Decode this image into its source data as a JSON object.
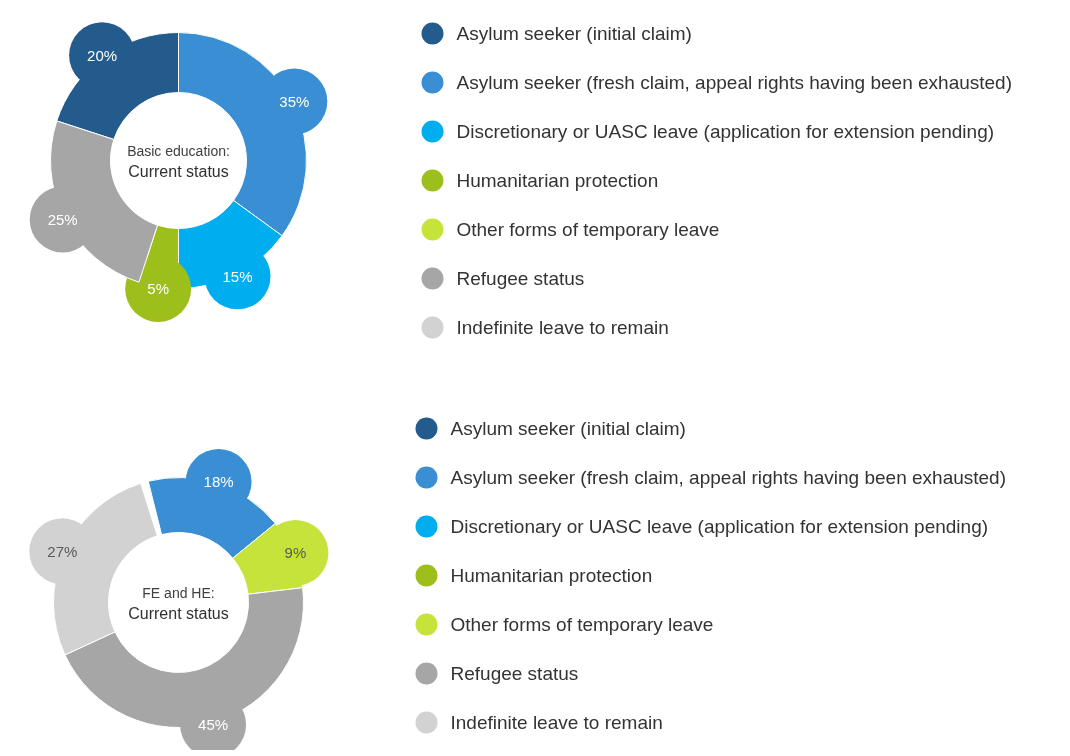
{
  "chart_data": [
    {
      "type": "donut",
      "title": "Basic education:",
      "subtitle": "Current status",
      "legend": "right",
      "categories": [
        "Asylum seeker (initial claim)",
        "Asylum seeker (fresh claim, appeal rights having been exhausted)",
        "Discretionary or UASC leave (application for extension pending)",
        "Humanitarian protection",
        "Other forms of temporary leave",
        "Refugee status",
        "Indefinite leave to remain"
      ],
      "values": [
        20,
        35,
        15,
        5,
        0,
        25,
        0
      ],
      "value_labels": [
        "20%",
        "35%",
        "15%",
        "5%",
        null,
        "25%",
        null
      ],
      "colors": [
        "#235b8c",
        "#3a8fd4",
        "#00aeef",
        "#9dbf1c",
        "#c5e33a",
        "#a6a6a6",
        "#d2d2d2"
      ]
    },
    {
      "type": "donut",
      "title": "FE and HE:",
      "subtitle": "Current status",
      "legend": "right",
      "categories": [
        "Asylum seeker (initial claim)",
        "Asylum seeker (fresh claim, appeal rights having been exhausted)",
        "Discretionary or UASC leave (application for extension pending)",
        "Humanitarian protection",
        "Other forms of temporary leave",
        "Refugee status",
        "Indefinite leave to remain"
      ],
      "values": [
        0,
        18,
        0,
        0,
        9,
        45,
        27
      ],
      "value_labels": [
        null,
        "18%",
        null,
        null,
        "9%",
        "45%",
        "27%"
      ],
      "colors": [
        "#235b8c",
        "#3a8fd4",
        "#00aeef",
        "#9dbf1c",
        "#c5e33a",
        "#a6a6a6",
        "#d2d2d2"
      ]
    }
  ]
}
